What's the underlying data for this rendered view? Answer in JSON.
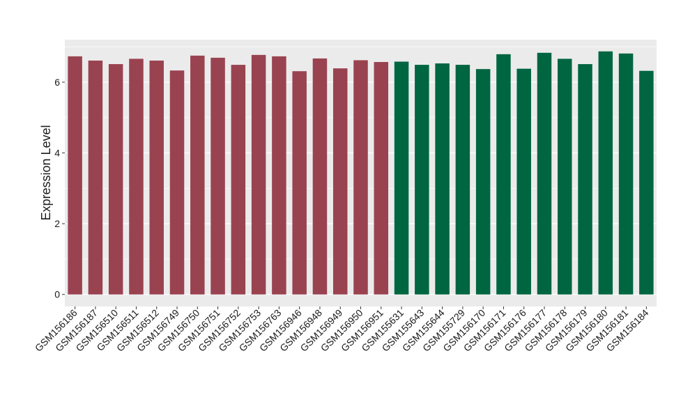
{
  "chart_data": {
    "type": "bar",
    "y_label": "Expression Level",
    "categories": [
      "GSM156186",
      "GSM156187",
      "GSM156510",
      "GSM156511",
      "GSM156512",
      "GSM156749",
      "GSM156750",
      "GSM156751",
      "GSM156752",
      "GSM156753",
      "GSM156763",
      "GSM156946",
      "GSM156948",
      "GSM156949",
      "GSM156950",
      "GSM156951",
      "GSM155631",
      "GSM155643",
      "GSM155644",
      "GSM155729",
      "GSM156170",
      "GSM156171",
      "GSM156176",
      "GSM156177",
      "GSM156178",
      "GSM156179",
      "GSM156180",
      "GSM156181",
      "GSM156184"
    ],
    "values": [
      6.73,
      6.61,
      6.51,
      6.66,
      6.61,
      6.33,
      6.75,
      6.69,
      6.49,
      6.77,
      6.73,
      6.31,
      6.67,
      6.39,
      6.62,
      6.57,
      6.58,
      6.49,
      6.53,
      6.49,
      6.37,
      6.79,
      6.38,
      6.83,
      6.66,
      6.51,
      6.87,
      6.81,
      6.32
    ],
    "colors": [
      "#9a4350",
      "#9a4350",
      "#9a4350",
      "#9a4350",
      "#9a4350",
      "#9a4350",
      "#9a4350",
      "#9a4350",
      "#9a4350",
      "#9a4350",
      "#9a4350",
      "#9a4350",
      "#9a4350",
      "#9a4350",
      "#9a4350",
      "#9a4350",
      "#006641",
      "#006641",
      "#006641",
      "#006641",
      "#006641",
      "#006641",
      "#006641",
      "#006641",
      "#006641",
      "#006641",
      "#006641",
      "#006641",
      "#006641"
    ],
    "ylim": [
      -0.34,
      7.2
    ],
    "yticks": [
      0,
      2,
      4,
      6
    ],
    "y_minor_grid": [
      1,
      3,
      5,
      7
    ],
    "grid": true
  }
}
